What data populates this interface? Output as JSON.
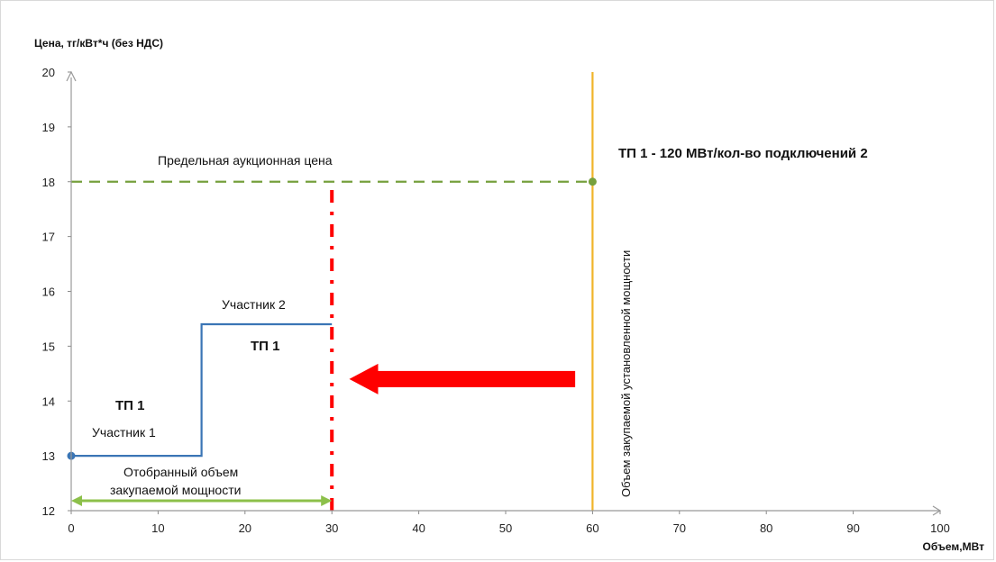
{
  "chart_data": {
    "type": "line",
    "ylabel": "Цена, тг/кВт*ч (без НДС)",
    "xlabel": "Объем,МВт",
    "xlim": [
      0,
      100
    ],
    "ylim": [
      12,
      20
    ],
    "x_ticks": [
      0,
      10,
      20,
      30,
      40,
      50,
      60,
      70,
      80,
      90,
      100
    ],
    "y_ticks": [
      12,
      13,
      14,
      15,
      16,
      17,
      18,
      19,
      20
    ],
    "grid": false,
    "series": [
      {
        "style": "step",
        "color": "#3a75b5",
        "points": [
          [
            0,
            13
          ],
          [
            15,
            13
          ],
          [
            15,
            15.4
          ],
          [
            30,
            15.4
          ]
        ]
      },
      {
        "style": "dashed",
        "color": "#76a03d",
        "points": [
          [
            0,
            18
          ],
          [
            60,
            18
          ]
        ]
      },
      {
        "style": "dash-dot",
        "color": "#ff0000",
        "points": [
          [
            30,
            12
          ],
          [
            30,
            18
          ]
        ]
      },
      {
        "style": "solid",
        "color": "#f0b429",
        "points": [
          [
            60,
            12
          ],
          [
            60,
            20
          ]
        ]
      }
    ],
    "markers": [
      {
        "x": 0,
        "y": 13,
        "color": "#3a75b5"
      },
      {
        "x": 60,
        "y": 18,
        "color": "#76a03d"
      }
    ],
    "double_arrow": {
      "x_from": 0,
      "x_to": 30,
      "y": 12.18,
      "color": "#8cc04a"
    },
    "big_arrow": {
      "x_from": 58,
      "x_to": 32,
      "y": 14.4,
      "color": "#ff0000"
    },
    "annotations": {
      "price_cap": "Предельная аукционная цена",
      "tp_total": "ТП 1 - 120 МВт/кол-во подключений 2",
      "participant1": "Участник 1",
      "participant2": "Участник 2",
      "tp1_left": "ТП 1",
      "tp1_right": "ТП 1",
      "selected_volume_line1": "Отобранный объем",
      "selected_volume_line2": "закупаемой мощности",
      "installed_capacity": "Объем закупаемой установленной мощности"
    }
  }
}
